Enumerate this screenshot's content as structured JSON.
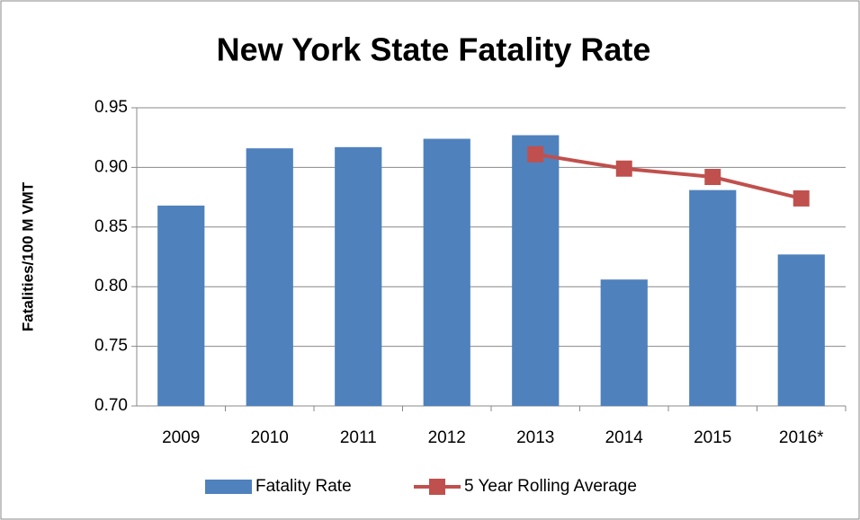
{
  "chart_data": {
    "type": "bar",
    "title": "New York State Fatality Rate",
    "y_label": "Fatalities/100 M VMT",
    "categories": [
      "2009",
      "2010",
      "2011",
      "2012",
      "2013",
      "2014",
      "2015",
      "2016*"
    ],
    "series": [
      {
        "name": "Fatality Rate",
        "type": "bar",
        "color": "#4f81bd",
        "values": [
          0.868,
          0.916,
          0.917,
          0.924,
          0.927,
          0.806,
          0.881,
          0.827
        ]
      },
      {
        "name": "5 Year Rolling Average",
        "type": "line",
        "color": "#c0504d",
        "values": [
          null,
          null,
          null,
          null,
          0.911,
          0.899,
          0.892,
          0.874
        ]
      }
    ],
    "ylim": [
      0.7,
      0.95
    ],
    "yticks": [
      {
        "value": 0.7,
        "label": "0.70"
      },
      0.75,
      {
        "value": 0.8,
        "label": "0.80"
      },
      0.85,
      {
        "value": 0.9,
        "label": "0.90"
      },
      0.95
    ],
    "grid": true,
    "legend": "bottom"
  }
}
